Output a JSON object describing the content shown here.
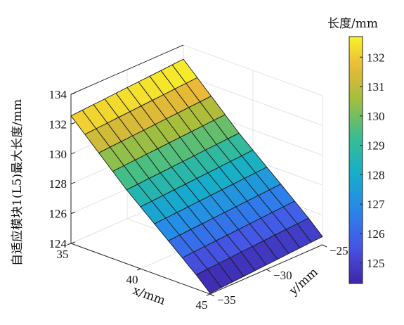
{
  "chart_data": {
    "type": "surface3d",
    "x": [
      35,
      36,
      37,
      38,
      39,
      40,
      41,
      42,
      43,
      44,
      45
    ],
    "y": [
      -35,
      -34,
      -33,
      -32,
      -31,
      -30,
      -29,
      -28,
      -27,
      -26,
      -25
    ],
    "z_at_x": [
      132.8,
      131.9,
      131.0,
      130.1,
      129.2,
      128.4,
      127.6,
      126.8,
      126.0,
      125.2,
      124.3
    ],
    "z_y_variation": 0.5,
    "xlabel": "x/mm",
    "ylabel": "y/mm",
    "zlabel": "自适应模块1(L5)最大长度/mm",
    "xticks": [
      "35",
      "40",
      "45"
    ],
    "yticks": [
      "−35",
      "−30",
      "−25"
    ],
    "zticks": [
      "124",
      "126",
      "128",
      "130",
      "132",
      "134"
    ],
    "xlim": [
      35,
      45
    ],
    "ylim": [
      -35,
      -25
    ],
    "zlim": [
      124,
      134
    ],
    "grid": true,
    "colorbar": {
      "title": "长度/mm",
      "ticks": [
        "125",
        "126",
        "127",
        "128",
        "129",
        "130",
        "131",
        "132"
      ],
      "range": [
        124.3,
        132.7
      ],
      "colormap": "parula"
    }
  }
}
